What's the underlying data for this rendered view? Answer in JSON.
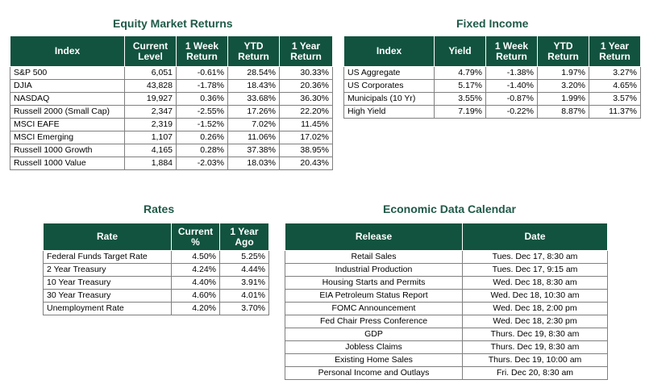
{
  "equity": {
    "title": "Equity Market Returns",
    "headers": [
      "Index",
      "Current Level",
      "1 Week Return",
      "YTD Return",
      "1 Year Return"
    ],
    "rows": [
      [
        "S&P 500",
        "6,051",
        "-0.61%",
        "28.54%",
        "30.33%"
      ],
      [
        "DJIA",
        "43,828",
        "-1.78%",
        "18.43%",
        "20.36%"
      ],
      [
        "NASDAQ",
        "19,927",
        "0.36%",
        "33.68%",
        "36.30%"
      ],
      [
        "Russell 2000 (Small Cap)",
        "2,347",
        "-2.55%",
        "17.26%",
        "22.20%"
      ],
      [
        "MSCI EAFE",
        "2,319",
        "-1.52%",
        "7.02%",
        "11.45%"
      ],
      [
        "MSCI Emerging",
        "1,107",
        "0.26%",
        "11.06%",
        "17.02%"
      ],
      [
        "Russell 1000 Growth",
        "4,165",
        "0.28%",
        "37.38%",
        "38.95%"
      ],
      [
        "Russell 1000 Value",
        "1,884",
        "-2.03%",
        "18.03%",
        "20.43%"
      ]
    ]
  },
  "fixed_income": {
    "title": "Fixed Income",
    "headers": [
      "Index",
      "Yield",
      "1 Week Return",
      "YTD Return",
      "1 Year Return"
    ],
    "rows": [
      [
        "US Aggregate",
        "4.79%",
        "-1.38%",
        "1.97%",
        "3.27%"
      ],
      [
        "US Corporates",
        "5.17%",
        "-1.40%",
        "3.20%",
        "4.65%"
      ],
      [
        "Municipals (10 Yr)",
        "3.55%",
        "-0.87%",
        "1.99%",
        "3.57%"
      ],
      [
        "High Yield",
        "7.19%",
        "-0.22%",
        "8.87%",
        "11.37%"
      ]
    ]
  },
  "rates": {
    "title": "Rates",
    "headers": [
      "Rate",
      "Current %",
      "1 Year Ago"
    ],
    "rows": [
      [
        "Federal Funds Target Rate",
        "4.50%",
        "5.25%"
      ],
      [
        "2 Year Treasury",
        "4.24%",
        "4.44%"
      ],
      [
        "10 Year Treasury",
        "4.40%",
        "3.91%"
      ],
      [
        "30 Year Treasury",
        "4.60%",
        "4.01%"
      ],
      [
        "Unemployment Rate",
        "4.20%",
        "3.70%"
      ]
    ]
  },
  "calendar": {
    "title": "Economic Data Calendar",
    "headers": [
      "Release",
      "Date"
    ],
    "rows": [
      [
        "Retail Sales",
        "Tues. Dec 17, 8:30 am"
      ],
      [
        "Industrial Production",
        "Tues. Dec 17, 9:15 am"
      ],
      [
        "Housing Starts and Permits",
        "Wed. Dec 18, 8:30 am"
      ],
      [
        "EIA Petroleum Status Report",
        "Wed. Dec 18, 10:30 am"
      ],
      [
        "FOMC Announcement",
        "Wed. Dec 18, 2:00 pm"
      ],
      [
        "Fed Chair Press Conference",
        "Wed. Dec 18, 2:30 pm"
      ],
      [
        "GDP",
        "Thurs. Dec 19, 8:30 am"
      ],
      [
        "Jobless Claims",
        "Thurs. Dec 19, 8:30 am"
      ],
      [
        "Existing Home Sales",
        "Thurs. Dec 19, 10:00 am"
      ],
      [
        "Personal Income and Outlays",
        "Fri. Dec 20, 8:30 am"
      ]
    ]
  }
}
